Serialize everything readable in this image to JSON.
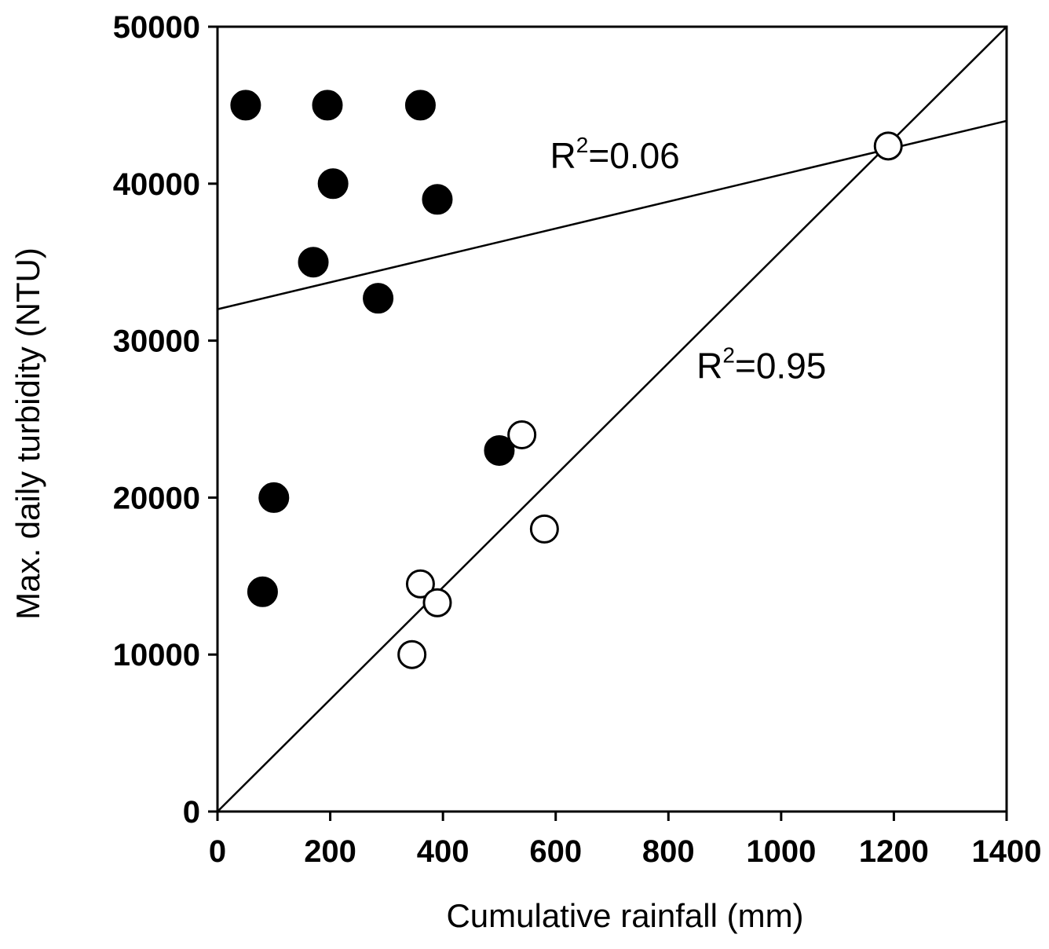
{
  "chart_data": {
    "type": "scatter",
    "xlabel": "Cumulative rainfall (mm)",
    "ylabel": "Max. daily turbidity (NTU)",
    "xlim": [
      0,
      1400
    ],
    "ylim": [
      0,
      50000
    ],
    "xticks": [
      0,
      200,
      400,
      600,
      800,
      1000,
      1200,
      1400
    ],
    "yticks": [
      0,
      10000,
      20000,
      30000,
      40000,
      50000
    ],
    "grid": false,
    "legend": "none",
    "series": [
      {
        "marker": "filled-circle",
        "color": "#000000",
        "points": [
          {
            "x": 50,
            "y": 45000
          },
          {
            "x": 195,
            "y": 45000
          },
          {
            "x": 360,
            "y": 45000
          },
          {
            "x": 205,
            "y": 40000
          },
          {
            "x": 390,
            "y": 39000
          },
          {
            "x": 170,
            "y": 35000
          },
          {
            "x": 285,
            "y": 32700
          },
          {
            "x": 500,
            "y": 23000
          },
          {
            "x": 100,
            "y": 20000
          },
          {
            "x": 80,
            "y": 14000
          }
        ],
        "fit": {
          "x": [
            0,
            1400
          ],
          "y": [
            32000,
            44000
          ],
          "label_pre": "R",
          "label_sup": "2",
          "label_post": "=0.06",
          "label_at": {
            "x": 590,
            "y": 41000
          }
        }
      },
      {
        "marker": "open-circle",
        "color": "#000000",
        "points": [
          {
            "x": 1190,
            "y": 42400
          },
          {
            "x": 540,
            "y": 24000
          },
          {
            "x": 580,
            "y": 18000
          },
          {
            "x": 360,
            "y": 14500
          },
          {
            "x": 390,
            "y": 13300
          },
          {
            "x": 345,
            "y": 10000
          }
        ],
        "fit": {
          "x": [
            0,
            1400
          ],
          "y": [
            0,
            50000
          ],
          "label_pre": "R",
          "label_sup": "2",
          "label_post": "=0.95",
          "label_at": {
            "x": 850,
            "y": 27600
          }
        }
      }
    ]
  }
}
